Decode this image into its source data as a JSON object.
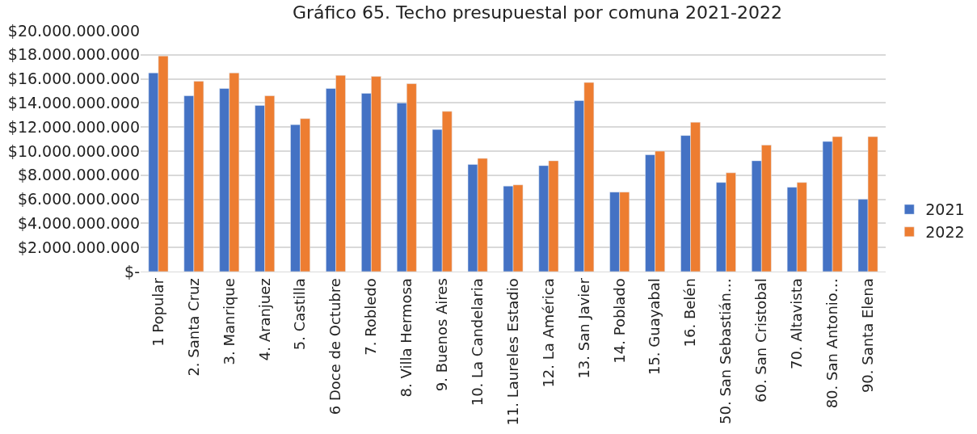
{
  "chart_data": {
    "type": "bar",
    "title": "Gráfico 65. Techo presupuestal por comuna 2021-2022",
    "categories": [
      "1 Popular",
      "2. Santa Cruz",
      "3. Manrique",
      "4. Aranjuez",
      "5. Castilla",
      "6 Doce de Octubre",
      "7. Robledo",
      "8. Villa Hermosa",
      "9. Buenos Aires",
      "10. La Candelaria",
      "11. Laureles Estadio",
      "12. La América",
      "13. San Javier",
      "14. Poblado",
      "15. Guayabal",
      "16. Belén",
      "50. San Sebastián…",
      "60. San Cristobal",
      "70. Altavista",
      "80. San Antonio…",
      "90. Santa Elena"
    ],
    "series": [
      {
        "name": "2021",
        "color": "#4472c4",
        "values": [
          16500000000,
          14600000000,
          15200000000,
          13800000000,
          12200000000,
          15200000000,
          14800000000,
          14000000000,
          11800000000,
          8900000000,
          7100000000,
          8800000000,
          14200000000,
          6600000000,
          9700000000,
          11300000000,
          7400000000,
          9200000000,
          7000000000,
          10800000000,
          6000000000
        ]
      },
      {
        "name": "2022",
        "color": "#ed7d31",
        "values": [
          17900000000,
          15800000000,
          16500000000,
          14600000000,
          12700000000,
          16300000000,
          16200000000,
          15600000000,
          13300000000,
          9400000000,
          7200000000,
          9200000000,
          15700000000,
          6600000000,
          10000000000,
          12400000000,
          8200000000,
          10500000000,
          7400000000,
          11200000000,
          11200000000
        ]
      }
    ],
    "ylim": [
      0,
      20000000000
    ],
    "yticks": [
      {
        "value": 0,
        "label": "$-"
      },
      {
        "value": 2000000000,
        "label": "$2.000.000.000"
      },
      {
        "value": 4000000000,
        "label": "$4.000.000.000"
      },
      {
        "value": 6000000000,
        "label": "$6.000.000.000"
      },
      {
        "value": 8000000000,
        "label": "$8.000.000.000"
      },
      {
        "value": 10000000000,
        "label": "$10.000.000.000"
      },
      {
        "value": 12000000000,
        "label": "$12.000.000.000"
      },
      {
        "value": 14000000000,
        "label": "$14.000.000.000"
      },
      {
        "value": 16000000000,
        "label": "$16.000.000.000"
      },
      {
        "value": 18000000000,
        "label": "$18.000.000.000"
      },
      {
        "value": 20000000000,
        "label": "$20.000.000.000"
      }
    ],
    "grid": "y",
    "legend": "right"
  }
}
